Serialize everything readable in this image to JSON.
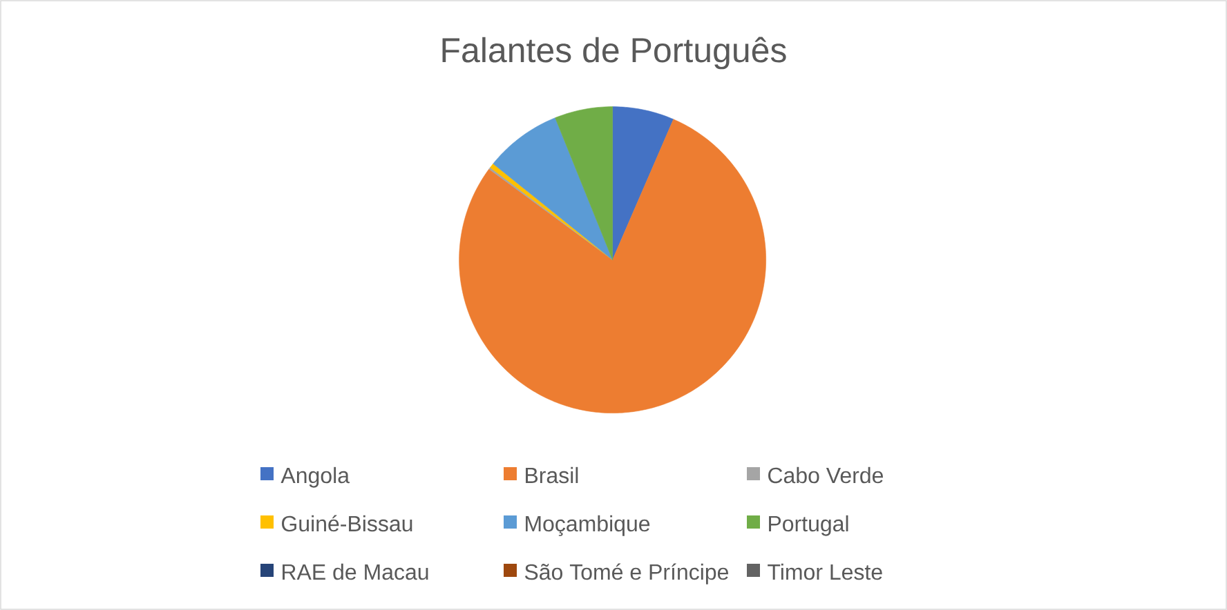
{
  "chart_data": {
    "type": "pie",
    "title": "Falantes de Português",
    "categories": [
      "Angola",
      "Brasil",
      "Cabo Verde",
      "Guiné-Bissau",
      "Moçambique",
      "Portugal",
      "RAE de Macau",
      "São Tomé e Príncipe",
      "Timor Leste"
    ],
    "values": [
      6.5,
      78.6,
      0.2,
      0.5,
      8.1,
      6.1,
      null,
      null,
      null
    ],
    "colors": [
      "#4472c4",
      "#ed7d31",
      "#a5a5a5",
      "#ffc000",
      "#5b9bd5",
      "#70ad47",
      "#264478",
      "#9e480e",
      "#636363"
    ],
    "legend": "bottom"
  }
}
